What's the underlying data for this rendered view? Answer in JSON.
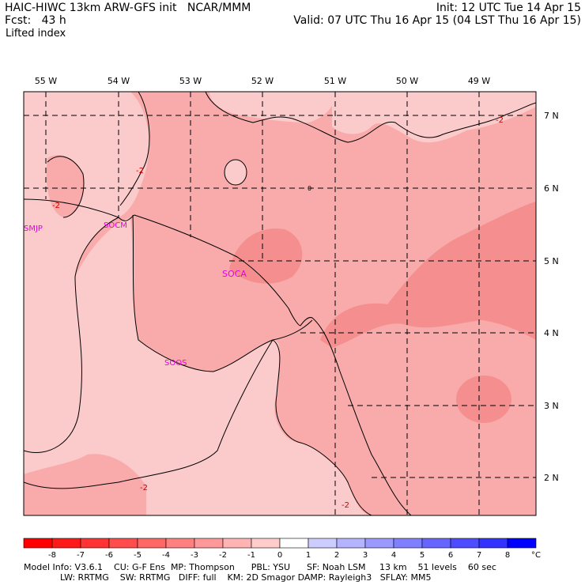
{
  "header": {
    "left_line1": "HAIC-HIWC 13km ARW-GFS init   NCAR/MMM",
    "left_line2": "Fcst:   43 h",
    "right_line1": "Init: 12 UTC Tue 14 Apr 15",
    "right_line2": "Valid: 07 UTC Thu 16 Apr 15 (04 LST Thu 16 Apr 15)",
    "field_name": "Lifted index"
  },
  "map": {
    "lon_labels": [
      "55 W",
      "54 W",
      "53 W",
      "52 W",
      "51 W",
      "50 W",
      "49 W"
    ],
    "lat_labels": [
      "7 N",
      "6 N",
      "5 N",
      "4 N",
      "3 N",
      "2 N"
    ],
    "stations": [
      "SMJP",
      "SOCM",
      "SOCA",
      "SOOS"
    ],
    "contour_labels": [
      "-2",
      "-2",
      "-2",
      "-2",
      "-2",
      "0"
    ],
    "colors": {
      "light_pink": "#fbcaca",
      "medium_pink": "#f9abab",
      "deep_pink": "#f58f8f",
      "station": "#e600e6",
      "contour_label": "#cc0000"
    }
  },
  "colorbar": {
    "values": [
      "-8",
      "-7",
      "-6",
      "-5",
      "-4",
      "-3",
      "-2",
      "-1",
      "0",
      "1",
      "2",
      "3",
      "4",
      "5",
      "6",
      "7",
      "8"
    ],
    "unit": "°C",
    "colors": [
      "#ff0000",
      "#ff1a1a",
      "#ff3333",
      "#ff4d4d",
      "#ff6666",
      "#ff8080",
      "#ff9999",
      "#ffb3b3",
      "#ffcccc",
      "#ffffff",
      "#ccccff",
      "#b3b3ff",
      "#9999ff",
      "#8080ff",
      "#6666ff",
      "#4d4dff",
      "#3333ff",
      "#0000ff"
    ]
  },
  "footer": {
    "line1": "Model Info: V3.6.1    CU: G-F Ens  MP: Thompson      PBL: YSU      SF: Noah LSM     13 km    51 levels    60 sec",
    "line2": "LW: RRTMG    SW: RRTMG   DIFF: full    KM: 2D Smagor DAMP: Rayleigh3   SFLAY: MM5"
  }
}
